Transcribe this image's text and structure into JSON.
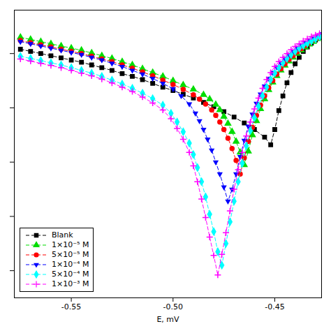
{
  "chart_data": {
    "type": "line",
    "xlabel": "E, mV",
    "xlim": [
      -0.578,
      -0.427
    ],
    "ylim": [
      -2.5,
      2.8
    ],
    "xticks": [
      -0.55,
      {
        "value": -0.5,
        "label": "-0.50"
      },
      -0.45
    ],
    "yticks": [
      -2,
      -1,
      0,
      1,
      2
    ],
    "tick_labels": "x",
    "grid": false,
    "legend": "lower left",
    "series": [
      {
        "name": "Blank",
        "color": "black",
        "marker": "square",
        "line_style": "dashed",
        "x": [
          -0.575,
          -0.57,
          -0.565,
          -0.56,
          -0.555,
          -0.55,
          -0.545,
          -0.54,
          -0.535,
          -0.53,
          -0.525,
          -0.52,
          -0.515,
          -0.51,
          -0.505,
          -0.5,
          -0.495,
          -0.49,
          -0.485,
          -0.48,
          -0.475,
          -0.47,
          -0.465,
          -0.46,
          -0.455,
          -0.452,
          -0.45,
          -0.448,
          -0.446,
          -0.444,
          -0.442,
          -0.44,
          -0.438,
          -0.436,
          -0.434,
          -0.432,
          -0.43,
          -0.428
        ],
        "values": [
          2.08,
          2.04,
          2.0,
          1.96,
          1.92,
          1.88,
          1.84,
          1.79,
          1.74,
          1.69,
          1.63,
          1.58,
          1.52,
          1.45,
          1.38,
          1.32,
          1.25,
          1.18,
          1.1,
          1.02,
          0.93,
          0.83,
          0.72,
          0.6,
          0.46,
          0.32,
          0.6,
          0.95,
          1.22,
          1.46,
          1.65,
          1.81,
          1.93,
          2.04,
          2.12,
          2.19,
          2.25,
          2.3
        ]
      },
      {
        "name": "1×10⁻⁵ M",
        "color": "#00dd00",
        "marker": "triangle-up",
        "line_style": "dashed",
        "x": [
          -0.575,
          -0.57,
          -0.565,
          -0.56,
          -0.555,
          -0.55,
          -0.545,
          -0.54,
          -0.535,
          -0.53,
          -0.525,
          -0.52,
          -0.515,
          -0.51,
          -0.505,
          -0.5,
          -0.495,
          -0.49,
          -0.485,
          -0.482,
          -0.479,
          -0.477,
          -0.475,
          -0.473,
          -0.471,
          -0.469,
          -0.467,
          -0.465,
          -0.463,
          -0.461,
          -0.459,
          -0.457,
          -0.455,
          -0.453,
          -0.451,
          -0.449,
          -0.447,
          -0.445,
          -0.443,
          -0.441,
          -0.439,
          -0.437,
          -0.435,
          -0.433,
          -0.431,
          -0.429,
          -0.427
        ],
        "values": [
          2.3,
          2.26,
          2.22,
          2.18,
          2.14,
          2.1,
          2.06,
          2.01,
          1.96,
          1.91,
          1.85,
          1.79,
          1.72,
          1.65,
          1.58,
          1.5,
          1.42,
          1.34,
          1.24,
          1.16,
          1.06,
          0.96,
          0.84,
          0.71,
          0.56,
          0.38,
          0.18,
          -0.05,
          0.2,
          0.5,
          0.76,
          0.98,
          1.16,
          1.33,
          1.47,
          1.59,
          1.69,
          1.78,
          1.86,
          1.93,
          2.0,
          2.06,
          2.12,
          2.17,
          2.22,
          2.27,
          2.31
        ]
      },
      {
        "name": "5×10⁻⁵ M",
        "color": "red",
        "marker": "circle",
        "line_style": "dashed",
        "x": [
          -0.575,
          -0.57,
          -0.565,
          -0.56,
          -0.555,
          -0.55,
          -0.545,
          -0.54,
          -0.535,
          -0.53,
          -0.525,
          -0.52,
          -0.515,
          -0.51,
          -0.505,
          -0.5,
          -0.495,
          -0.49,
          -0.487,
          -0.484,
          -0.481,
          -0.479,
          -0.477,
          -0.475,
          -0.473,
          -0.471,
          -0.469,
          -0.467,
          -0.465,
          -0.463,
          -0.461,
          -0.459,
          -0.457,
          -0.455,
          -0.453,
          -0.451,
          -0.449,
          -0.447,
          -0.445,
          -0.443,
          -0.441,
          -0.439,
          -0.437,
          -0.435,
          -0.433,
          -0.431,
          -0.429,
          -0.427
        ],
        "values": [
          2.24,
          2.2,
          2.16,
          2.12,
          2.08,
          2.04,
          2.0,
          1.95,
          1.9,
          1.85,
          1.79,
          1.73,
          1.66,
          1.59,
          1.51,
          1.43,
          1.34,
          1.24,
          1.16,
          1.07,
          0.96,
          0.86,
          0.74,
          0.6,
          0.44,
          0.25,
          0.03,
          -0.22,
          0.08,
          0.38,
          0.64,
          0.86,
          1.05,
          1.22,
          1.37,
          1.5,
          1.62,
          1.72,
          1.81,
          1.89,
          1.96,
          2.03,
          2.09,
          2.15,
          2.2,
          2.25,
          2.29,
          2.33
        ]
      },
      {
        "name": "1×10⁻⁴ M",
        "color": "blue",
        "marker": "triangle-down",
        "line_style": "dashed",
        "x": [
          -0.575,
          -0.57,
          -0.565,
          -0.56,
          -0.555,
          -0.55,
          -0.545,
          -0.54,
          -0.535,
          -0.53,
          -0.525,
          -0.52,
          -0.515,
          -0.51,
          -0.505,
          -0.5,
          -0.496,
          -0.492,
          -0.489,
          -0.487,
          -0.485,
          -0.483,
          -0.481,
          -0.479,
          -0.477,
          -0.475,
          -0.473,
          -0.471,
          -0.469,
          -0.467,
          -0.465,
          -0.463,
          -0.461,
          -0.459,
          -0.457,
          -0.455,
          -0.453,
          -0.451,
          -0.449,
          -0.447,
          -0.445,
          -0.443,
          -0.441,
          -0.439,
          -0.437,
          -0.435,
          -0.433,
          -0.431,
          -0.429,
          -0.427
        ],
        "values": [
          2.22,
          2.18,
          2.14,
          2.1,
          2.06,
          2.02,
          1.98,
          1.93,
          1.88,
          1.82,
          1.76,
          1.69,
          1.62,
          1.54,
          1.45,
          1.35,
          1.22,
          1.07,
          0.9,
          0.76,
          0.6,
          0.42,
          0.22,
          0.0,
          -0.22,
          -0.46,
          -0.72,
          -0.5,
          -0.22,
          0.1,
          0.4,
          0.66,
          0.88,
          1.08,
          1.25,
          1.4,
          1.54,
          1.65,
          1.75,
          1.83,
          1.91,
          1.98,
          2.04,
          2.1,
          2.15,
          2.2,
          2.25,
          2.29,
          2.33,
          2.36
        ]
      },
      {
        "name": "5×10⁻⁴ M",
        "color": "cyan",
        "marker": "diamond",
        "line_style": "dashed",
        "x": [
          -0.575,
          -0.57,
          -0.565,
          -0.56,
          -0.555,
          -0.55,
          -0.545,
          -0.54,
          -0.535,
          -0.53,
          -0.525,
          -0.52,
          -0.515,
          -0.51,
          -0.505,
          -0.501,
          -0.498,
          -0.495,
          -0.492,
          -0.49,
          -0.488,
          -0.486,
          -0.484,
          -0.482,
          -0.48,
          -0.478,
          -0.476,
          -0.474,
          -0.472,
          -0.47,
          -0.468,
          -0.466,
          -0.464,
          -0.462,
          -0.46,
          -0.458,
          -0.456,
          -0.454,
          -0.452,
          -0.45,
          -0.448,
          -0.446,
          -0.444,
          -0.442,
          -0.44,
          -0.438,
          -0.436,
          -0.434,
          -0.432,
          -0.43,
          -0.428
        ],
        "values": [
          1.95,
          1.91,
          1.87,
          1.83,
          1.79,
          1.74,
          1.69,
          1.64,
          1.58,
          1.51,
          1.44,
          1.36,
          1.27,
          1.17,
          1.05,
          0.9,
          0.74,
          0.56,
          0.35,
          0.14,
          -0.1,
          -0.36,
          -0.64,
          -0.96,
          -1.28,
          -1.65,
          -1.9,
          -1.5,
          -1.1,
          -0.72,
          -0.36,
          -0.02,
          0.3,
          0.58,
          0.82,
          1.03,
          1.22,
          1.38,
          1.52,
          1.64,
          1.74,
          1.83,
          1.91,
          1.98,
          2.04,
          2.1,
          2.15,
          2.19,
          2.23,
          2.27,
          2.31
        ]
      },
      {
        "name": "1×10⁻³ M",
        "color": "magenta",
        "marker": "plus",
        "line_style": "dashed",
        "x": [
          -0.575,
          -0.57,
          -0.565,
          -0.56,
          -0.555,
          -0.55,
          -0.545,
          -0.54,
          -0.535,
          -0.53,
          -0.525,
          -0.52,
          -0.515,
          -0.51,
          -0.505,
          -0.501,
          -0.498,
          -0.495,
          -0.492,
          -0.49,
          -0.488,
          -0.486,
          -0.484,
          -0.482,
          -0.48,
          -0.478,
          -0.476,
          -0.474,
          -0.472,
          -0.47,
          -0.468,
          -0.466,
          -0.464,
          -0.462,
          -0.46,
          -0.458,
          -0.456,
          -0.454,
          -0.452,
          -0.45,
          -0.448,
          -0.446,
          -0.444,
          -0.442,
          -0.44,
          -0.438,
          -0.436,
          -0.434,
          -0.432,
          -0.43,
          -0.428
        ],
        "values": [
          1.9,
          1.86,
          1.82,
          1.78,
          1.74,
          1.69,
          1.64,
          1.59,
          1.53,
          1.46,
          1.38,
          1.3,
          1.2,
          1.09,
          0.96,
          0.8,
          0.62,
          0.42,
          0.18,
          -0.07,
          -0.36,
          -0.68,
          -1.02,
          -1.38,
          -1.72,
          -2.08,
          -1.7,
          -1.3,
          -0.9,
          -0.5,
          -0.14,
          0.18,
          0.48,
          0.74,
          0.98,
          1.18,
          1.36,
          1.52,
          1.65,
          1.76,
          1.85,
          1.93,
          2.0,
          2.07,
          2.13,
          2.18,
          2.23,
          2.27,
          2.31,
          2.34,
          2.37
        ]
      }
    ]
  }
}
